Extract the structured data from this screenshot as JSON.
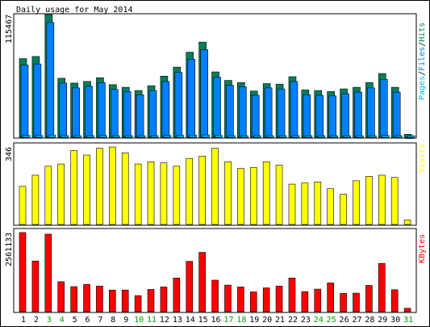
{
  "title": "Daily usage for May 2014",
  "colors": {
    "background": "#ffffff",
    "frame": "#000000",
    "hits": "#00805c",
    "files": "#0080ff",
    "pages": "#00c0ff",
    "visits": "#ffff00",
    "kbytes": "#ff0000",
    "weekend_day": "#00a000",
    "weekday_day": "#000000"
  },
  "chart_data": [
    {
      "type": "bar",
      "panel": "top",
      "y_max_label": "115467",
      "ylim": [
        0,
        115467
      ],
      "legend_words": [
        "Pages",
        "Files",
        "Hits"
      ],
      "categories": [
        "1",
        "2",
        "3",
        "4",
        "5",
        "6",
        "7",
        "8",
        "9",
        "10",
        "11",
        "12",
        "13",
        "14",
        "15",
        "16",
        "17",
        "18",
        "19",
        "20",
        "21",
        "22",
        "23",
        "24",
        "25",
        "26",
        "27",
        "28",
        "29",
        "30",
        "31"
      ],
      "series": [
        {
          "name": "Hits",
          "color": "#00805c",
          "values": [
            74000,
            76000,
            115467,
            55500,
            51000,
            52500,
            56000,
            49500,
            47000,
            44000,
            48500,
            57500,
            66000,
            80000,
            89500,
            61500,
            53500,
            51500,
            43500,
            50500,
            50000,
            57000,
            44500,
            44000,
            43000,
            45500,
            47000,
            51500,
            60000,
            47000,
            2800
          ]
        },
        {
          "name": "Files",
          "color": "#0080ff",
          "values": [
            71000,
            72000,
            111000,
            54000,
            49500,
            51000,
            54500,
            48000,
            46000,
            43000,
            47000,
            55500,
            64000,
            76500,
            85500,
            59500,
            52000,
            50500,
            42500,
            49500,
            48500,
            55500,
            43000,
            42500,
            42000,
            44000,
            45500,
            49500,
            57500,
            45500,
            2500
          ]
        },
        {
          "name": "Pages",
          "color": "#00c0ff",
          "values": [
            1800,
            1700,
            2100,
            1600,
            1500,
            1600,
            1700,
            1500,
            1400,
            1400,
            1500,
            1700,
            1800,
            2000,
            2200,
            1800,
            1600,
            1500,
            1300,
            1500,
            1500,
            1600,
            1300,
            1300,
            1300,
            1400,
            1400,
            1500,
            1700,
            1400,
            500
          ]
        }
      ]
    },
    {
      "type": "bar",
      "panel": "middle",
      "y_max_label": "346",
      "ylim": [
        0,
        346
      ],
      "legend_words": [
        "Visits"
      ],
      "categories": [
        "1",
        "2",
        "3",
        "4",
        "5",
        "6",
        "7",
        "8",
        "9",
        "10",
        "11",
        "12",
        "13",
        "14",
        "15",
        "16",
        "17",
        "18",
        "19",
        "20",
        "21",
        "22",
        "23",
        "24",
        "25",
        "26",
        "27",
        "28",
        "29",
        "30",
        "31"
      ],
      "series": [
        {
          "name": "Visits",
          "color": "#ffff00",
          "values": [
            170,
            220,
            260,
            270,
            330,
            310,
            340,
            346,
            320,
            270,
            280,
            275,
            260,
            295,
            305,
            340,
            280,
            250,
            255,
            280,
            265,
            180,
            185,
            190,
            160,
            135,
            195,
            215,
            220,
            210,
            20
          ]
        }
      ]
    },
    {
      "type": "bar",
      "panel": "bottom",
      "y_max_label": "2561133",
      "ylim": [
        0,
        2561133
      ],
      "legend_words": [
        "KBytes"
      ],
      "categories": [
        "1",
        "2",
        "3",
        "4",
        "5",
        "6",
        "7",
        "8",
        "9",
        "10",
        "11",
        "12",
        "13",
        "14",
        "15",
        "16",
        "17",
        "18",
        "19",
        "20",
        "21",
        "22",
        "23",
        "24",
        "25",
        "26",
        "27",
        "28",
        "29",
        "30",
        "31"
      ],
      "series": [
        {
          "name": "KBytes",
          "color": "#ff0000",
          "values": [
            2561133,
            1640000,
            2510000,
            970000,
            810000,
            880000,
            830000,
            700000,
            700000,
            520000,
            720000,
            800000,
            1090000,
            1630000,
            1920000,
            1020000,
            860000,
            800000,
            640000,
            770000,
            830000,
            1090000,
            650000,
            730000,
            930000,
            590000,
            600000,
            850000,
            1560000,
            710000,
            110000
          ]
        }
      ]
    }
  ],
  "x_axis": {
    "day_labels": [
      "1",
      "2",
      "3",
      "4",
      "5",
      "6",
      "7",
      "8",
      "9",
      "10",
      "11",
      "12",
      "13",
      "14",
      "15",
      "16",
      "17",
      "18",
      "19",
      "20",
      "21",
      "22",
      "23",
      "24",
      "25",
      "26",
      "27",
      "28",
      "29",
      "30",
      "31"
    ],
    "weekend_days": [
      "3",
      "4",
      "10",
      "11",
      "17",
      "18",
      "24",
      "25",
      "31"
    ]
  }
}
